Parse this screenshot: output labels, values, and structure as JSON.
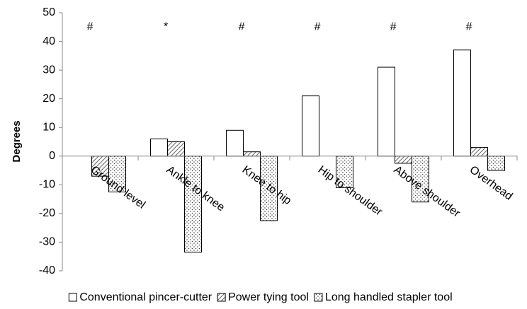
{
  "chart_data": {
    "type": "bar",
    "y_label": "Degrees",
    "categories": [
      "Ground level",
      "Ankle to knee",
      "Knee to hip",
      "Hip to shoulder",
      "Above shoulder",
      "Overhead"
    ],
    "annotations": [
      "#",
      "*",
      "#",
      "#",
      "#",
      "#"
    ],
    "series": [
      {
        "name": "Conventional pincer-cutter",
        "color": "#ffffff",
        "pattern": "none",
        "values": [
          0,
          6,
          9,
          21,
          31,
          37
        ]
      },
      {
        "name": "Power tying tool",
        "color": "#ffffff",
        "pattern": "hatch",
        "values": [
          -7,
          5,
          1.5,
          0,
          -2.5,
          3
        ]
      },
      {
        "name": "Long handled stapler tool",
        "color": "#ffffff",
        "pattern": "dots",
        "values": [
          -12.5,
          -33.5,
          -22.5,
          -11,
          -16,
          -5
        ]
      }
    ],
    "ylim": [
      -40,
      50
    ],
    "yticks": [
      -40,
      -30,
      -20,
      -10,
      0,
      10,
      20,
      30,
      40,
      50
    ],
    "grid": false
  }
}
